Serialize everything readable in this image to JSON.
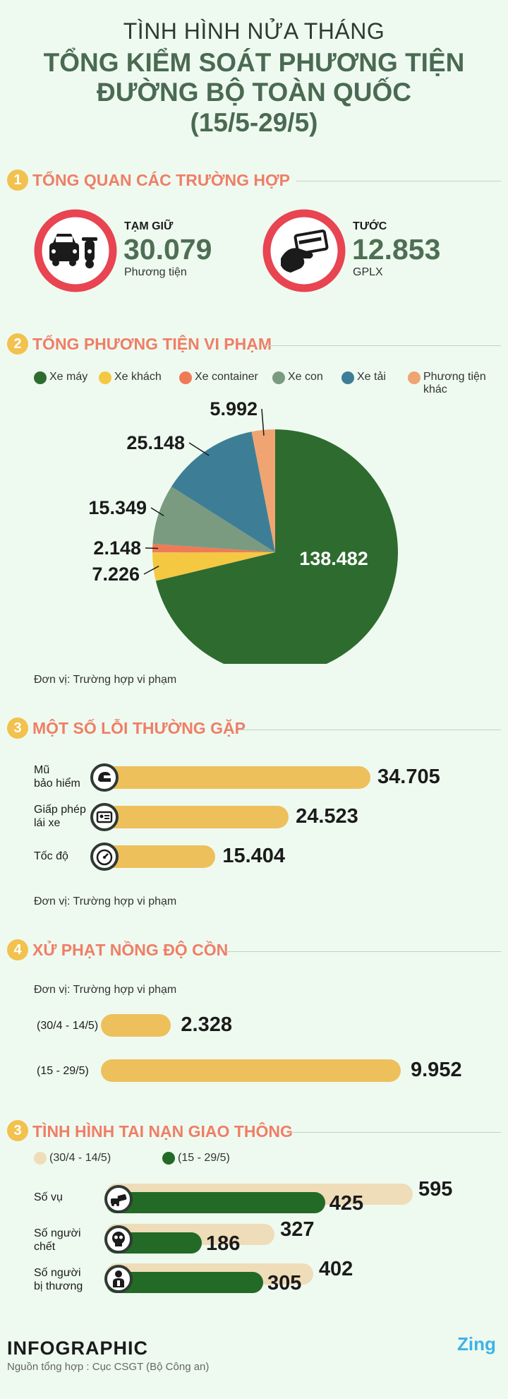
{
  "header": {
    "line1": "TÌNH HÌNH NỬA THÁNG",
    "line2": "TỔNG KIỂM SOÁT PHƯƠNG TIỆN",
    "line3": "ĐƯỜNG BỘ TOÀN QUỐC",
    "line4": "(15/5-29/5)"
  },
  "section1": {
    "num": "1",
    "title": "TỔNG QUAN CÁC TRƯỜNG HỢP",
    "detained": {
      "label": "TẠM GIỮ",
      "value": "30.079",
      "unit": "Phương tiện"
    },
    "revoked": {
      "label": "TƯỚC",
      "value": "12.853",
      "unit": "GPLX"
    }
  },
  "section2": {
    "num": "2",
    "title": "TỔNG PHƯƠNG TIỆN VI PHẠM",
    "note": "Đơn vị: Trường hợp vi phạm",
    "colors": [
      "#2e6b2f",
      "#f5c842",
      "#ef7b56",
      "#7a9b80",
      "#3d7e96",
      "#f0a472"
    ]
  },
  "chart_data": {
    "type": "pie",
    "categories": [
      "Xe máy",
      "Xe khách",
      "Xe container",
      "Xe con",
      "Xe tải",
      "Phương tiện khác"
    ],
    "values": [
      138482,
      7226,
      2148,
      15349,
      25148,
      5992
    ],
    "labels": [
      "138.482",
      "7.226",
      "2.148",
      "15.349",
      "25.148",
      "5.992"
    ],
    "legend": "top"
  },
  "section3": {
    "num": "3",
    "title": "MỘT SỐ LỖI THƯỜNG GẶP",
    "note": "Đơn vị: Trường hợp vi phạm",
    "rows": [
      {
        "label1": "Mũ",
        "label2": "bảo hiểm",
        "value": "34.705",
        "num": 34705,
        "icon": "helmet-icon"
      },
      {
        "label1": "Giấp phép",
        "label2": "lái xe",
        "value": "24.523",
        "num": 24523,
        "icon": "license-card-icon"
      },
      {
        "label1": "Tốc độ",
        "label2": "",
        "value": "15.404",
        "num": 15404,
        "icon": "speedometer-icon"
      }
    ]
  },
  "section4": {
    "num": "4",
    "title": "XỬ PHẠT NỒNG ĐỘ CỒN",
    "note": "Đơn vị: Trường hợp vi phạm",
    "rows": [
      {
        "label": "(30/4 - 14/5)",
        "value": "2.328",
        "num": 2328
      },
      {
        "label": "(15 - 29/5)",
        "value": "9.952",
        "num": 9952
      }
    ]
  },
  "section5": {
    "num": "3",
    "title": "TÌNH HÌNH TAI NẠN GIAO THÔNG",
    "legend_prev": "(30/4 - 14/5)",
    "legend_curr": "(15 - 29/5)",
    "color_prev": "#efdcb8",
    "color_curr": "#236a26",
    "rows": [
      {
        "label1": "Số vụ",
        "label2": "",
        "prev": "595",
        "curr": "425",
        "prev_num": 595,
        "curr_num": 425,
        "icon": "car-crash-icon"
      },
      {
        "label1": "Số người",
        "label2": "chết",
        "prev": "327",
        "curr": "186",
        "prev_num": 327,
        "curr_num": 186,
        "icon": "skull-icon"
      },
      {
        "label1": "Số người",
        "label2": "bị thương",
        "prev": "402",
        "curr": "305",
        "prev_num": 402,
        "curr_num": 305,
        "icon": "injured-person-icon"
      }
    ]
  },
  "footer": {
    "brand": "INFOGRAPHIC",
    "source": "Nguồn tổng hợp : Cục CSGT (Bộ Công an)",
    "logo": "Zing"
  }
}
